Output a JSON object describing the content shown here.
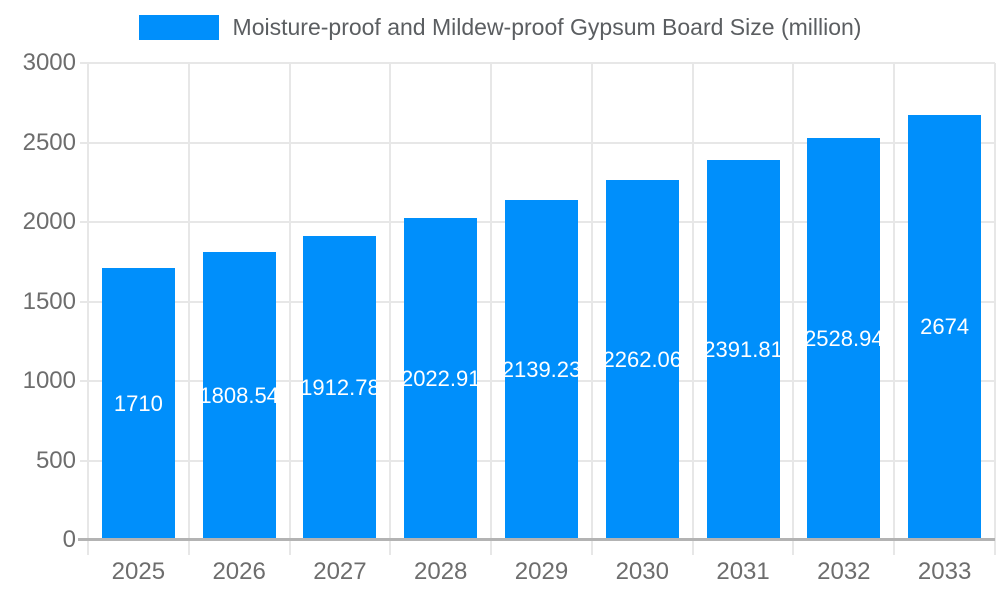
{
  "chart_data": {
    "type": "bar",
    "title": "Moisture-proof and Mildew-proof Gypsum Board Size (million)",
    "legend_position": "top",
    "grid": true,
    "categories": [
      "2025",
      "2026",
      "2027",
      "2028",
      "2029",
      "2030",
      "2031",
      "2032",
      "2033"
    ],
    "series": [
      {
        "name": "Moisture-proof and Mildew-proof Gypsum Board Size (million)",
        "values": [
          1710,
          1808.54,
          1912.78,
          2022.91,
          2139.23,
          2262.06,
          2391.81,
          2528.94,
          2674
        ],
        "labels": [
          "1710",
          "1808.54",
          "1912.78",
          "2022.91",
          "2139.23",
          "2262.06",
          "2391.81",
          "2528.94",
          "2674"
        ],
        "color": "#008FFB"
      }
    ],
    "xlabel": "",
    "ylabel": "",
    "ylim": [
      0,
      3000
    ],
    "y_ticks": [
      0,
      500,
      1000,
      1500,
      2000,
      2500,
      3000
    ],
    "colors": {
      "bar": "#008FFB",
      "gridline": "#e7e7e7",
      "axis_line": "#b3b3b3",
      "axis_label_text": "#6d6d6d",
      "legend_text": "#5b5e61",
      "value_label_text": "#ffffff",
      "background": "#ffffff"
    }
  }
}
